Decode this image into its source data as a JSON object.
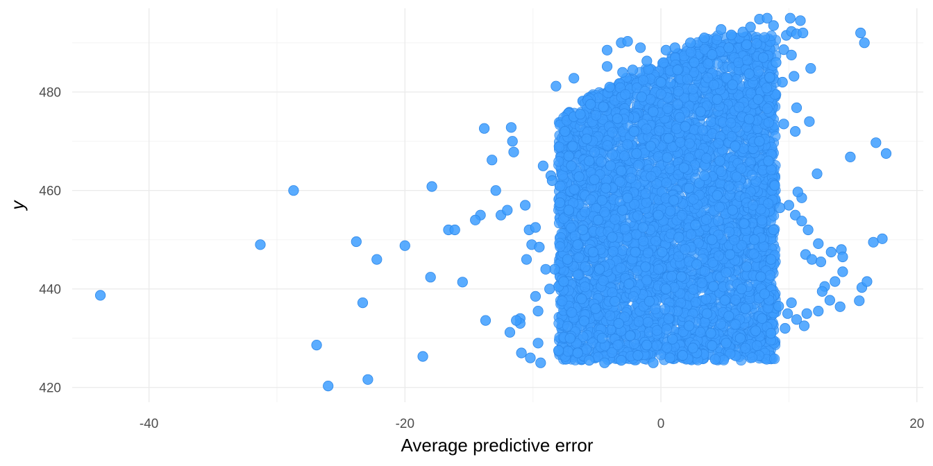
{
  "chart_data": {
    "type": "scatter",
    "title": "",
    "xlabel": "Average predictive error",
    "ylabel": "y",
    "xlim": [
      -46,
      20.5
    ],
    "ylim": [
      417,
      497
    ],
    "x_ticks": [
      -40,
      -20,
      0,
      20
    ],
    "x_tick_labels": [
      "-40",
      "-20",
      "0",
      "20"
    ],
    "y_ticks": [
      420,
      440,
      460,
      480
    ],
    "y_tick_labels": [
      "420",
      "440",
      "460",
      "480"
    ],
    "grid": true,
    "legend": "none",
    "point_color": "#3d9dff",
    "point_stroke": "#2b86e8",
    "series": [
      {
        "points": [
          [
            -43.8,
            438.7
          ],
          [
            -31.3,
            449.0
          ],
          [
            -28.7,
            460.0
          ],
          [
            -26.9,
            428.6
          ],
          [
            -26.0,
            420.3
          ],
          [
            -23.8,
            449.6
          ],
          [
            -23.3,
            437.2
          ],
          [
            -22.9,
            421.6
          ],
          [
            -22.2,
            446.0
          ],
          [
            -20.0,
            448.8
          ],
          [
            -18.6,
            426.3
          ],
          [
            -18.0,
            442.4
          ],
          [
            -17.9,
            460.8
          ],
          [
            -16.6,
            452.0
          ],
          [
            -16.1,
            452.0
          ],
          [
            -15.5,
            441.4
          ],
          [
            -14.1,
            455.0
          ],
          [
            -14.5,
            454.0
          ],
          [
            -13.7,
            433.6
          ],
          [
            -13.8,
            472.6
          ],
          [
            -13.2,
            466.2
          ],
          [
            -12.9,
            460.0
          ],
          [
            -12.5,
            455.0
          ],
          [
            -12.0,
            456.0
          ],
          [
            -11.7,
            472.8
          ],
          [
            -11.6,
            470.0
          ],
          [
            -11.5,
            467.8
          ],
          [
            -11.8,
            431.2
          ],
          [
            -11.0,
            434.0
          ],
          [
            -10.6,
            457.0
          ],
          [
            -10.3,
            452.0
          ],
          [
            -10.1,
            449.0
          ],
          [
            -9.6,
            435.5
          ],
          [
            -9.6,
            429.0
          ],
          [
            -9.2,
            465.0
          ],
          [
            -8.6,
            463.0
          ],
          [
            -8.5,
            462.0
          ],
          [
            -8.0,
            427.5
          ],
          [
            -8.3,
            444.0
          ],
          [
            -9.5,
            448.5
          ],
          [
            -8.0,
            440.5
          ],
          [
            -8.7,
            440.0
          ],
          [
            -7.2,
            467.0
          ],
          [
            -7.5,
            472.0
          ],
          [
            -6.8,
            475.0
          ],
          [
            -6.3,
            475.5
          ],
          [
            -5.5,
            477.5
          ],
          [
            -4.0,
            481.0
          ],
          [
            -6.8,
            482.8
          ],
          [
            -8.2,
            481.2
          ],
          [
            -4.2,
            488.5
          ],
          [
            -3.1,
            490.0
          ],
          [
            -2.6,
            490.3
          ],
          [
            -1.6,
            489.0
          ],
          [
            -2.2,
            484.5
          ],
          [
            -3.0,
            484.0
          ],
          [
            -4.2,
            485.2
          ],
          [
            -1.1,
            486.3
          ],
          [
            0.4,
            488.5
          ],
          [
            1.1,
            489.0
          ],
          [
            2.3,
            490.0
          ],
          [
            3.4,
            491.0
          ],
          [
            4.7,
            492.7
          ],
          [
            5.5,
            491.6
          ],
          [
            6.4,
            492.2
          ],
          [
            7.0,
            493.2
          ],
          [
            7.7,
            494.8
          ],
          [
            8.3,
            495.0
          ],
          [
            8.8,
            493.5
          ],
          [
            9.8,
            491.5
          ],
          [
            10.2,
            492.3
          ],
          [
            10.6,
            491.8
          ],
          [
            10.9,
            494.5
          ],
          [
            11.1,
            492.0
          ],
          [
            10.1,
            495.0
          ],
          [
            9.6,
            488.6
          ],
          [
            10.2,
            487.5
          ],
          [
            11.7,
            484.8
          ],
          [
            10.4,
            483.2
          ],
          [
            9.5,
            482.0
          ],
          [
            10.6,
            476.8
          ],
          [
            9.6,
            473.5
          ],
          [
            10.5,
            472.0
          ],
          [
            11.6,
            474.0
          ],
          [
            12.2,
            463.4
          ],
          [
            11.0,
            458.5
          ],
          [
            10.7,
            459.7
          ],
          [
            10.0,
            457.0
          ],
          [
            10.5,
            455.0
          ],
          [
            11.0,
            453.8
          ],
          [
            11.5,
            452.0
          ],
          [
            12.3,
            449.2
          ],
          [
            11.3,
            447.0
          ],
          [
            11.8,
            446.0
          ],
          [
            12.5,
            445.5
          ],
          [
            13.3,
            447.5
          ],
          [
            14.1,
            448.0
          ],
          [
            14.2,
            443.5
          ],
          [
            13.6,
            441.5
          ],
          [
            12.8,
            440.5
          ],
          [
            12.6,
            439.5
          ],
          [
            13.2,
            437.7
          ],
          [
            14.0,
            436.4
          ],
          [
            12.3,
            435.5
          ],
          [
            11.2,
            432.5
          ],
          [
            10.6,
            433.8
          ],
          [
            9.9,
            435.0
          ],
          [
            10.2,
            437.2
          ],
          [
            11.4,
            435.0
          ],
          [
            14.8,
            466.8
          ],
          [
            16.8,
            469.7
          ],
          [
            17.6,
            467.5
          ],
          [
            15.6,
            492.0
          ],
          [
            15.9,
            490.0
          ],
          [
            16.6,
            449.5
          ],
          [
            17.3,
            450.2
          ],
          [
            15.7,
            440.3
          ],
          [
            16.1,
            441.5
          ],
          [
            15.5,
            437.6
          ],
          [
            14.2,
            446.5
          ],
          [
            -9.0,
            444.0
          ],
          [
            -10.5,
            446.0
          ],
          [
            -9.8,
            452.5
          ],
          [
            -9.8,
            438.5
          ],
          [
            -10.2,
            426.0
          ],
          [
            -9.4,
            425.0
          ],
          [
            -10.9,
            427.0
          ],
          [
            -11.0,
            433.0
          ],
          [
            -11.3,
            433.6
          ],
          [
            -7.1,
            430.0
          ],
          [
            -6.5,
            427.0
          ],
          [
            -5.6,
            425.5
          ],
          [
            -4.4,
            425.0
          ],
          [
            -3.1,
            425.5
          ],
          [
            -1.8,
            426.5
          ],
          [
            -0.6,
            425.0
          ],
          [
            0.7,
            426.0
          ],
          [
            1.7,
            426.5
          ],
          [
            2.8,
            427.0
          ],
          [
            4.0,
            428.5
          ],
          [
            5.1,
            429.0
          ],
          [
            6.2,
            430.0
          ],
          [
            7.4,
            431.5
          ],
          [
            8.6,
            431.0
          ],
          [
            9.7,
            432.0
          ],
          [
            -5.8,
            470.5
          ],
          [
            -7.9,
            457.5
          ],
          [
            -7.2,
            456.0
          ],
          [
            -6.4,
            462.8
          ],
          [
            -5.2,
            462.2
          ],
          [
            -4.6,
            458.0
          ],
          [
            -3.0,
            456.0
          ],
          [
            -6.1,
            452.0
          ],
          [
            -5.3,
            447.5
          ],
          [
            -4.8,
            444.0
          ],
          [
            -6.2,
            438.0
          ],
          [
            -5.1,
            436.0
          ],
          [
            -3.3,
            433.0
          ],
          [
            -2.4,
            430.5
          ],
          [
            -1.1,
            428.6
          ],
          [
            0.9,
            429.8
          ],
          [
            2.2,
            432.5
          ],
          [
            3.6,
            435.0
          ],
          [
            5.0,
            437.7
          ],
          [
            6.3,
            440.0
          ],
          [
            7.8,
            442.5
          ],
          [
            8.6,
            446.0
          ],
          [
            7.3,
            450.0
          ],
          [
            6.5,
            453.3
          ],
          [
            5.6,
            456.0
          ],
          [
            4.4,
            459.0
          ],
          [
            3.0,
            461.5
          ],
          [
            1.8,
            464.6
          ],
          [
            0.5,
            466.7
          ],
          [
            -0.8,
            469.0
          ],
          [
            -2.1,
            472.0
          ],
          [
            -3.4,
            474.6
          ],
          [
            -4.5,
            477.0
          ],
          [
            -1.5,
            479.0
          ],
          [
            0.0,
            482.0
          ],
          [
            1.3,
            484.5
          ],
          [
            2.6,
            486.0
          ],
          [
            4.0,
            487.6
          ],
          [
            5.3,
            489.0
          ],
          [
            6.7,
            489.6
          ],
          [
            8.0,
            487.0
          ],
          [
            6.9,
            483.7
          ],
          [
            5.6,
            481.5
          ],
          [
            4.4,
            478.5
          ],
          [
            3.1,
            476.0
          ],
          [
            1.9,
            473.0
          ],
          [
            0.6,
            470.6
          ],
          [
            -0.6,
            476.0
          ],
          [
            -1.9,
            467.5
          ],
          [
            -3.1,
            464.0
          ],
          [
            -4.3,
            460.5
          ],
          [
            -5.6,
            466.0
          ],
          [
            -6.9,
            469.0
          ],
          [
            -7.0,
            465.0
          ],
          [
            -6.5,
            449.0
          ],
          [
            -7.3,
            446.0
          ],
          [
            -7.6,
            441.5
          ],
          [
            -6.0,
            433.5
          ],
          [
            -4.6,
            430.0
          ],
          [
            -3.6,
            437.5
          ],
          [
            -2.5,
            441.0
          ],
          [
            -1.2,
            444.5
          ],
          [
            0.1,
            447.5
          ],
          [
            1.4,
            450.5
          ],
          [
            2.7,
            453.0
          ],
          [
            4.0,
            450.0
          ],
          [
            5.4,
            447.0
          ],
          [
            6.7,
            444.5
          ],
          [
            8.1,
            439.0
          ],
          [
            9.2,
            436.5
          ],
          [
            8.8,
            452.0
          ],
          [
            9.3,
            456.5
          ],
          [
            8.9,
            461.0
          ],
          [
            8.4,
            466.0
          ],
          [
            7.7,
            470.0
          ],
          [
            6.9,
            474.5
          ],
          [
            7.6,
            478.5
          ],
          [
            8.5,
            483.0
          ],
          [
            9.0,
            486.0
          ],
          [
            -1.4,
            452.5
          ],
          [
            -0.2,
            455.0
          ],
          [
            1.0,
            458.0
          ],
          [
            2.2,
            460.5
          ],
          [
            3.4,
            463.0
          ],
          [
            4.6,
            466.0
          ],
          [
            5.8,
            469.0
          ],
          [
            -2.6,
            458.5
          ],
          [
            -3.8,
            450.5
          ],
          [
            -4.9,
            454.0
          ],
          [
            -2.0,
            447.5
          ],
          [
            -0.9,
            437.5
          ],
          [
            0.4,
            440.0
          ],
          [
            1.6,
            442.5
          ],
          [
            2.8,
            445.0
          ],
          [
            4.1,
            440.5
          ],
          [
            5.3,
            434.5
          ],
          [
            6.6,
            436.0
          ],
          [
            7.9,
            434.0
          ],
          [
            3.9,
            431.0
          ],
          [
            2.5,
            428.0
          ]
        ]
      }
    ]
  }
}
